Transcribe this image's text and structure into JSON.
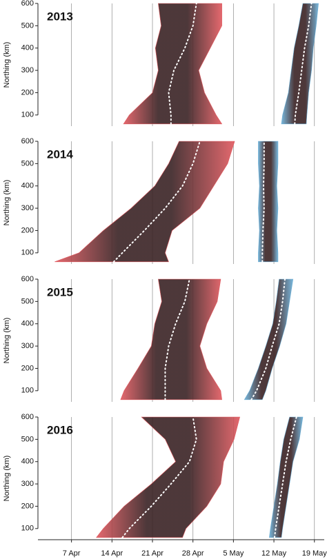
{
  "chart_data": {
    "type": "band",
    "ylabel": "Northing (km)",
    "ylim": [
      50,
      600
    ],
    "yticks": [
      100,
      200,
      300,
      400,
      500,
      600
    ],
    "xlim": [
      91.2,
      140.7
    ],
    "xticks": [
      {
        "value": 97,
        "label": "7 Apr"
      },
      {
        "value": 104,
        "label": "14 Apr"
      },
      {
        "value": 111,
        "label": "21 Apr"
      },
      {
        "value": 118,
        "label": "28 Apr"
      },
      {
        "value": 125,
        "label": "5 May"
      },
      {
        "value": 132,
        "label": "12 May"
      },
      {
        "value": 139,
        "label": "19 May"
      }
    ],
    "panels": [
      {
        "title": "2013",
        "y": [
          60,
          100,
          200,
          300,
          400,
          500,
          600
        ],
        "series": [
          {
            "color": "#e0585e",
            "lower": [
              106,
              107,
              111,
              112,
              111.5,
              112.5,
              112
            ],
            "upper": [
              123,
              122,
              120,
              119,
              121,
              123,
              123
            ],
            "median": [
              114.2,
              114.2,
              113.8,
              114.7,
              116.6,
              118,
              118.6
            ]
          },
          {
            "color": "#6aaed6",
            "lower": [
              133.3,
              133.5,
              134.5,
              135,
              135.5,
              136.3,
              137
            ],
            "upper": [
              137.6,
              137.7,
              138,
              138.5,
              138.8,
              139.3,
              139.7
            ],
            "median": [
              135.6,
              135.7,
              136.3,
              136.8,
              137.3,
              138,
              138.5
            ]
          }
        ]
      },
      {
        "title": "2014",
        "y": [
          60,
          100,
          200,
          300,
          400,
          500,
          600
        ],
        "series": [
          {
            "color": "#e0585e",
            "lower": [
              94.1,
              98.3,
              102.5,
              107.3,
              111.4,
              113.8,
              115.6
            ],
            "upper": [
              113.8,
              113.2,
              114.4,
              119.2,
              121.6,
              124,
              125.2
            ],
            "median": [
              104.3,
              105.8,
              109.6,
              113.2,
              116.2,
              118,
              119.2
            ]
          },
          {
            "color": "#6aaed6",
            "lower": [
              129.3,
              129.3,
              129.5,
              129.3,
              129.5,
              129.3,
              129.3
            ],
            "upper": [
              132.7,
              132.7,
              132.5,
              132.7,
              132.5,
              132.7,
              132.7
            ],
            "median": [
              130,
              130,
              130.1,
              130.3,
              130.2,
              130.3,
              130.3
            ]
          }
        ]
      },
      {
        "title": "2015",
        "y": [
          60,
          100,
          200,
          300,
          400,
          500,
          600
        ],
        "series": [
          {
            "color": "#e0585e",
            "lower": [
              105.5,
              106.1,
              108.5,
              110.8,
              111.4,
              112.6,
              112
            ],
            "upper": [
              123,
              122.8,
              120.4,
              119.2,
              120.4,
              122.2,
              122.8
            ],
            "median": [
              113.2,
              113.2,
              113.2,
              113.8,
              115,
              116.6,
              117.4
            ]
          },
          {
            "color": "#6aaed6",
            "lower": [
              126.9,
              127.8,
              129.3,
              130.6,
              131.8,
              132.4,
              132.9
            ],
            "upper": [
              130,
              130.6,
              131.7,
              133,
              134.1,
              134.7,
              135.3
            ],
            "median": [
              128.1,
              129,
              130.6,
              131.7,
              132.9,
              133.5,
              133.9
            ]
          }
        ]
      },
      {
        "title": "2016",
        "y": [
          60,
          100,
          200,
          300,
          400,
          500,
          600
        ],
        "series": [
          {
            "color": "#e0585e",
            "lower": [
              101.3,
              102.5,
              106.1,
              110.8,
              115,
              113.2,
              109.1
            ],
            "upper": [
              116.2,
              116.8,
              120.4,
              122.8,
              123.3,
              125.1,
              126.1
            ],
            "median": [
              105.8,
              107,
              110.8,
              114.2,
              117.4,
              118.6,
              118
            ]
          },
          {
            "color": "#6aaed6",
            "lower": [
              131.2,
              131.4,
              132,
              132.6,
              133.1,
              133.7,
              134.7
            ],
            "upper": [
              133.3,
              133.5,
              134.1,
              134.7,
              135.3,
              136.4,
              137
            ],
            "median": [
              132.1,
              132.3,
              132.9,
              133.5,
              134.1,
              134.9,
              135.9
            ]
          }
        ]
      }
    ]
  }
}
